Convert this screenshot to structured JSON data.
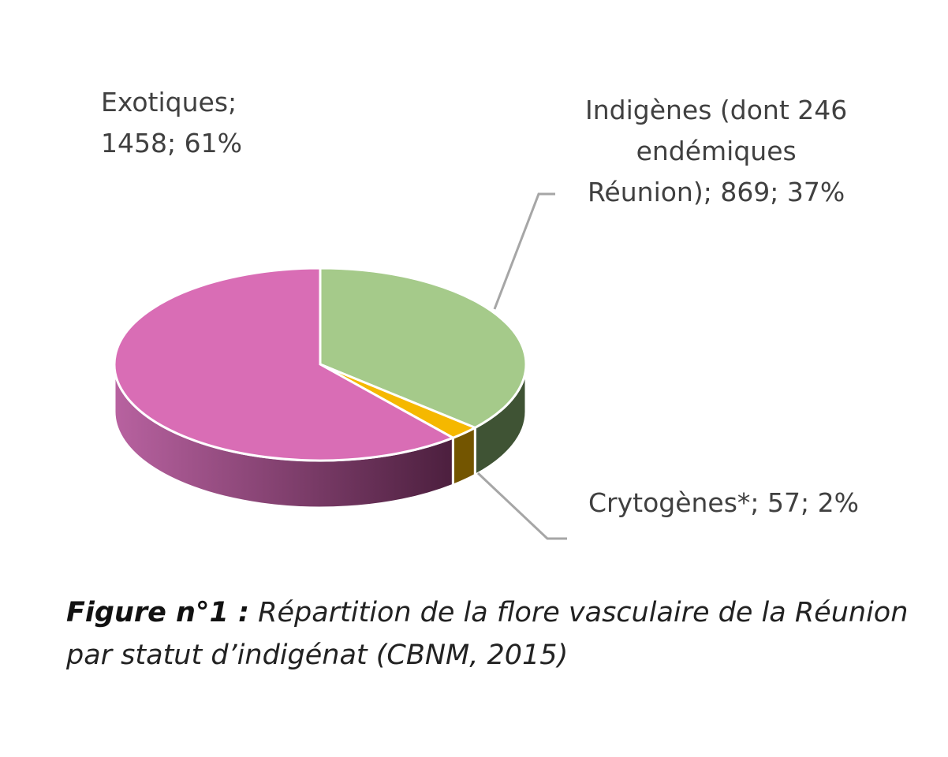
{
  "chart_data": {
    "type": "pie",
    "style": "3d",
    "slices": [
      {
        "label_lines": [
          "Indigènes (dont 246",
          "endémiques",
          "Réunion); 869; 37%"
        ],
        "category": "Indigènes (dont 246 endémiques Réunion)",
        "value": 869,
        "percent": 37,
        "color": "#a5ca8a",
        "side_color": "#3f5334"
      },
      {
        "label_lines": [
          "Crytogènes*; 57; 2%"
        ],
        "category": "Crytogènes*",
        "value": 57,
        "percent": 2,
        "color": "#f5b800",
        "side_color": "#735500"
      },
      {
        "label_lines": [
          "Exotiques;",
          "1458; 61%"
        ],
        "category": "Exotiques",
        "value": 1458,
        "percent": 61,
        "color": "#d96db5",
        "side_color": "#8a3f72"
      }
    ],
    "leader_line_color": "#a6a6a6"
  },
  "caption": {
    "label": "Figure  n°1 :",
    "text": " Répartition de la flore vasculaire de la Réunion par statut d’indigénat (CBNM, 2015)"
  }
}
